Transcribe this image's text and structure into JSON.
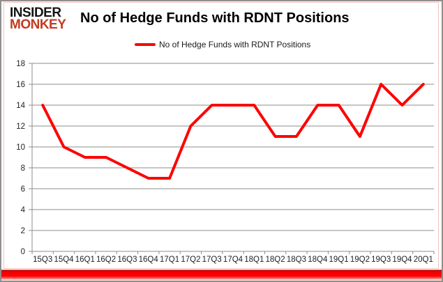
{
  "header": {
    "logo_line1": "INSIDER",
    "logo_line2": "MONKEY",
    "title": "No of Hedge Funds with RDNT Positions"
  },
  "legend": {
    "label": "No of Hedge Funds with RDNT Positions"
  },
  "colors": {
    "series": "#ff0000",
    "grid": "#8c8c8c",
    "axis_text": "#1f1f1f",
    "logo_black": "#141414",
    "logo_red": "#c23b22",
    "bottom_bar": "#ff0000",
    "inner_frame": "#f1c3bd"
  },
  "chart_data": {
    "type": "line",
    "title": "No of Hedge Funds with RDNT Positions",
    "categories": [
      "15Q3",
      "15Q4",
      "16Q1",
      "16Q2",
      "16Q3",
      "16Q4",
      "17Q1",
      "17Q2",
      "17Q3",
      "17Q4",
      "18Q1",
      "18Q2",
      "18Q3",
      "18Q4",
      "19Q1",
      "19Q2",
      "19Q3",
      "19Q4",
      "20Q1"
    ],
    "series": [
      {
        "name": "No of Hedge Funds with RDNT Positions",
        "color": "#ff0000",
        "values": [
          14,
          10,
          9,
          9,
          8,
          7,
          7,
          12,
          14,
          14,
          14,
          11,
          11,
          14,
          14,
          11,
          16,
          14,
          16
        ]
      }
    ],
    "xlabel": "",
    "ylabel": "",
    "ylim": [
      0,
      18
    ],
    "ytick_step": 2,
    "grid": true,
    "legend_position": "top-center"
  }
}
